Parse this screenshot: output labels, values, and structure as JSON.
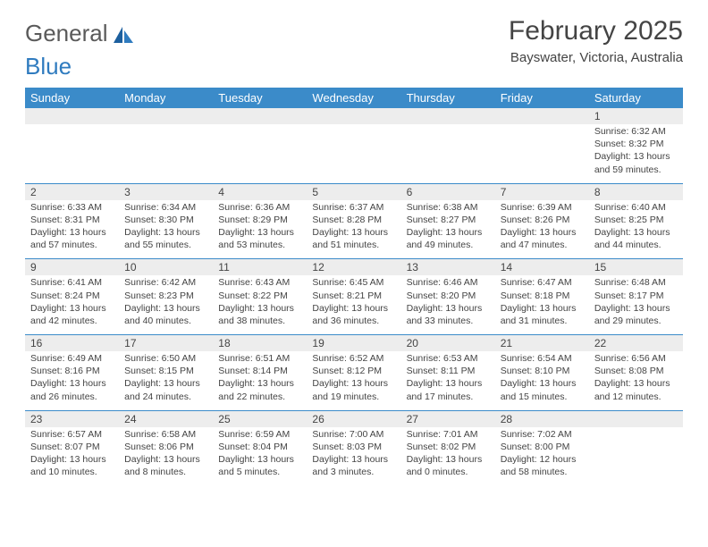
{
  "logo": {
    "text1": "General",
    "text2": "Blue"
  },
  "title": "February 2025",
  "subtitle": "Bayswater, Victoria, Australia",
  "colors": {
    "header_bar": "#3b8bc9",
    "header_text": "#ffffff",
    "daynum_bg": "#ededed",
    "text": "#444444",
    "rule": "#3b8bc9",
    "logo_gray": "#5a5a5a",
    "logo_blue": "#2f7bbf"
  },
  "day_headers": [
    "Sunday",
    "Monday",
    "Tuesday",
    "Wednesday",
    "Thursday",
    "Friday",
    "Saturday"
  ],
  "weeks": [
    [
      null,
      null,
      null,
      null,
      null,
      null,
      {
        "n": "1",
        "sr": "Sunrise: 6:32 AM",
        "ss": "Sunset: 8:32 PM",
        "dl": "Daylight: 13 hours and 59 minutes."
      }
    ],
    [
      {
        "n": "2",
        "sr": "Sunrise: 6:33 AM",
        "ss": "Sunset: 8:31 PM",
        "dl": "Daylight: 13 hours and 57 minutes."
      },
      {
        "n": "3",
        "sr": "Sunrise: 6:34 AM",
        "ss": "Sunset: 8:30 PM",
        "dl": "Daylight: 13 hours and 55 minutes."
      },
      {
        "n": "4",
        "sr": "Sunrise: 6:36 AM",
        "ss": "Sunset: 8:29 PM",
        "dl": "Daylight: 13 hours and 53 minutes."
      },
      {
        "n": "5",
        "sr": "Sunrise: 6:37 AM",
        "ss": "Sunset: 8:28 PM",
        "dl": "Daylight: 13 hours and 51 minutes."
      },
      {
        "n": "6",
        "sr": "Sunrise: 6:38 AM",
        "ss": "Sunset: 8:27 PM",
        "dl": "Daylight: 13 hours and 49 minutes."
      },
      {
        "n": "7",
        "sr": "Sunrise: 6:39 AM",
        "ss": "Sunset: 8:26 PM",
        "dl": "Daylight: 13 hours and 47 minutes."
      },
      {
        "n": "8",
        "sr": "Sunrise: 6:40 AM",
        "ss": "Sunset: 8:25 PM",
        "dl": "Daylight: 13 hours and 44 minutes."
      }
    ],
    [
      {
        "n": "9",
        "sr": "Sunrise: 6:41 AM",
        "ss": "Sunset: 8:24 PM",
        "dl": "Daylight: 13 hours and 42 minutes."
      },
      {
        "n": "10",
        "sr": "Sunrise: 6:42 AM",
        "ss": "Sunset: 8:23 PM",
        "dl": "Daylight: 13 hours and 40 minutes."
      },
      {
        "n": "11",
        "sr": "Sunrise: 6:43 AM",
        "ss": "Sunset: 8:22 PM",
        "dl": "Daylight: 13 hours and 38 minutes."
      },
      {
        "n": "12",
        "sr": "Sunrise: 6:45 AM",
        "ss": "Sunset: 8:21 PM",
        "dl": "Daylight: 13 hours and 36 minutes."
      },
      {
        "n": "13",
        "sr": "Sunrise: 6:46 AM",
        "ss": "Sunset: 8:20 PM",
        "dl": "Daylight: 13 hours and 33 minutes."
      },
      {
        "n": "14",
        "sr": "Sunrise: 6:47 AM",
        "ss": "Sunset: 8:18 PM",
        "dl": "Daylight: 13 hours and 31 minutes."
      },
      {
        "n": "15",
        "sr": "Sunrise: 6:48 AM",
        "ss": "Sunset: 8:17 PM",
        "dl": "Daylight: 13 hours and 29 minutes."
      }
    ],
    [
      {
        "n": "16",
        "sr": "Sunrise: 6:49 AM",
        "ss": "Sunset: 8:16 PM",
        "dl": "Daylight: 13 hours and 26 minutes."
      },
      {
        "n": "17",
        "sr": "Sunrise: 6:50 AM",
        "ss": "Sunset: 8:15 PM",
        "dl": "Daylight: 13 hours and 24 minutes."
      },
      {
        "n": "18",
        "sr": "Sunrise: 6:51 AM",
        "ss": "Sunset: 8:14 PM",
        "dl": "Daylight: 13 hours and 22 minutes."
      },
      {
        "n": "19",
        "sr": "Sunrise: 6:52 AM",
        "ss": "Sunset: 8:12 PM",
        "dl": "Daylight: 13 hours and 19 minutes."
      },
      {
        "n": "20",
        "sr": "Sunrise: 6:53 AM",
        "ss": "Sunset: 8:11 PM",
        "dl": "Daylight: 13 hours and 17 minutes."
      },
      {
        "n": "21",
        "sr": "Sunrise: 6:54 AM",
        "ss": "Sunset: 8:10 PM",
        "dl": "Daylight: 13 hours and 15 minutes."
      },
      {
        "n": "22",
        "sr": "Sunrise: 6:56 AM",
        "ss": "Sunset: 8:08 PM",
        "dl": "Daylight: 13 hours and 12 minutes."
      }
    ],
    [
      {
        "n": "23",
        "sr": "Sunrise: 6:57 AM",
        "ss": "Sunset: 8:07 PM",
        "dl": "Daylight: 13 hours and 10 minutes."
      },
      {
        "n": "24",
        "sr": "Sunrise: 6:58 AM",
        "ss": "Sunset: 8:06 PM",
        "dl": "Daylight: 13 hours and 8 minutes."
      },
      {
        "n": "25",
        "sr": "Sunrise: 6:59 AM",
        "ss": "Sunset: 8:04 PM",
        "dl": "Daylight: 13 hours and 5 minutes."
      },
      {
        "n": "26",
        "sr": "Sunrise: 7:00 AM",
        "ss": "Sunset: 8:03 PM",
        "dl": "Daylight: 13 hours and 3 minutes."
      },
      {
        "n": "27",
        "sr": "Sunrise: 7:01 AM",
        "ss": "Sunset: 8:02 PM",
        "dl": "Daylight: 13 hours and 0 minutes."
      },
      {
        "n": "28",
        "sr": "Sunrise: 7:02 AM",
        "ss": "Sunset: 8:00 PM",
        "dl": "Daylight: 12 hours and 58 minutes."
      },
      null
    ]
  ]
}
